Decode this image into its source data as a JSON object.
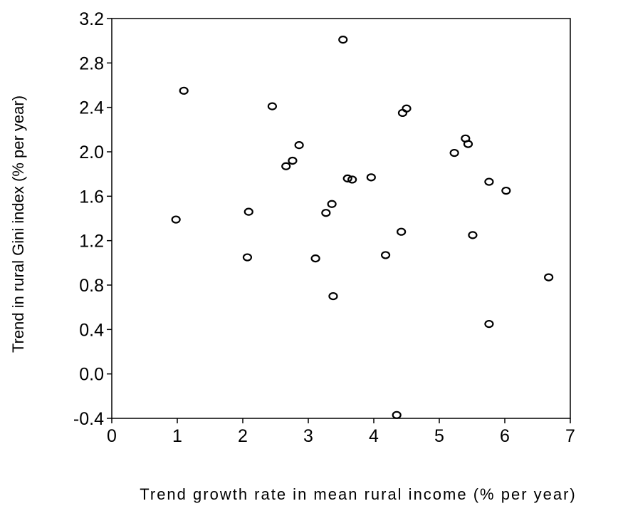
{
  "chart_data": {
    "type": "scatter",
    "xlabel": "Trend growth rate in mean rural income (% per year)",
    "ylabel": "Trend in rural Gini index (% per year)",
    "xlim": [
      0,
      7
    ],
    "ylim": [
      -0.4,
      3.2
    ],
    "x_ticks": [
      "0",
      "1",
      "2",
      "3",
      "4",
      "5",
      "6",
      "7"
    ],
    "y_ticks": [
      "-0.4",
      "0.0",
      "0.4",
      "0.8",
      "1.2",
      "1.6",
      "2.0",
      "2.4",
      "2.8",
      "3.2"
    ],
    "grid": false,
    "legend": "none",
    "marker": "open-circle",
    "series": [
      {
        "points": [
          {
            "x": 0.98,
            "y": 1.39
          },
          {
            "x": 1.1,
            "y": 2.55
          },
          {
            "x": 2.07,
            "y": 1.05
          },
          {
            "x": 2.09,
            "y": 1.46
          },
          {
            "x": 2.45,
            "y": 2.41
          },
          {
            "x": 2.66,
            "y": 1.87
          },
          {
            "x": 2.76,
            "y": 1.92
          },
          {
            "x": 2.86,
            "y": 2.06
          },
          {
            "x": 3.11,
            "y": 1.04
          },
          {
            "x": 3.27,
            "y": 1.45
          },
          {
            "x": 3.36,
            "y": 1.53
          },
          {
            "x": 3.38,
            "y": 0.7
          },
          {
            "x": 3.53,
            "y": 3.01
          },
          {
            "x": 3.6,
            "y": 1.76
          },
          {
            "x": 3.67,
            "y": 1.75
          },
          {
            "x": 3.96,
            "y": 1.77
          },
          {
            "x": 4.18,
            "y": 1.07
          },
          {
            "x": 4.35,
            "y": -0.37
          },
          {
            "x": 4.42,
            "y": 1.28
          },
          {
            "x": 4.44,
            "y": 2.35
          },
          {
            "x": 4.5,
            "y": 2.39
          },
          {
            "x": 5.23,
            "y": 1.99
          },
          {
            "x": 5.4,
            "y": 2.12
          },
          {
            "x": 5.44,
            "y": 2.07
          },
          {
            "x": 5.51,
            "y": 1.25
          },
          {
            "x": 5.76,
            "y": 1.73
          },
          {
            "x": 5.76,
            "y": 0.45
          },
          {
            "x": 6.02,
            "y": 1.65
          },
          {
            "x": 6.67,
            "y": 0.87
          }
        ]
      }
    ]
  }
}
